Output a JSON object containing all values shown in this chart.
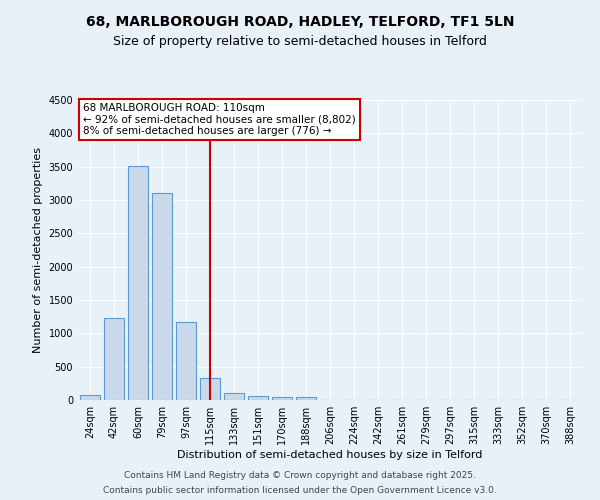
{
  "title1": "68, MARLBOROUGH ROAD, HADLEY, TELFORD, TF1 5LN",
  "title2": "Size of property relative to semi-detached houses in Telford",
  "xlabel": "Distribution of semi-detached houses by size in Telford",
  "ylabel": "Number of semi-detached properties",
  "bar_labels": [
    "24sqm",
    "42sqm",
    "60sqm",
    "79sqm",
    "97sqm",
    "115sqm",
    "133sqm",
    "151sqm",
    "170sqm",
    "188sqm",
    "206sqm",
    "224sqm",
    "242sqm",
    "261sqm",
    "279sqm",
    "297sqm",
    "315sqm",
    "333sqm",
    "352sqm",
    "370sqm",
    "388sqm"
  ],
  "bar_values": [
    75,
    1230,
    3510,
    3100,
    1170,
    330,
    100,
    60,
    50,
    50,
    0,
    0,
    0,
    0,
    0,
    0,
    0,
    0,
    0,
    0,
    0
  ],
  "bar_color": "#c9d9ea",
  "bar_edge_color": "#5b9bd5",
  "ylim": [
    0,
    4500
  ],
  "yticks": [
    0,
    500,
    1000,
    1500,
    2000,
    2500,
    3000,
    3500,
    4000,
    4500
  ],
  "vline_x": 5,
  "vline_color": "#cc0000",
  "annotation_title": "68 MARLBOROUGH ROAD: 110sqm",
  "annotation_line1": "← 92% of semi-detached houses are smaller (8,802)",
  "annotation_line2": "8% of semi-detached houses are larger (776) →",
  "annotation_box_color": "#ffffff",
  "annotation_box_edge": "#cc0000",
  "footer1": "Contains HM Land Registry data © Crown copyright and database right 2025.",
  "footer2": "Contains public sector information licensed under the Open Government Licence v3.0.",
  "bg_color": "#e8f0f8",
  "plot_bg_color": "#e8f0f8",
  "title_fontsize": 10,
  "subtitle_fontsize": 9,
  "axes_label_fontsize": 8,
  "tick_fontsize": 7,
  "annotation_fontsize": 7.5,
  "footer_fontsize": 6.5
}
